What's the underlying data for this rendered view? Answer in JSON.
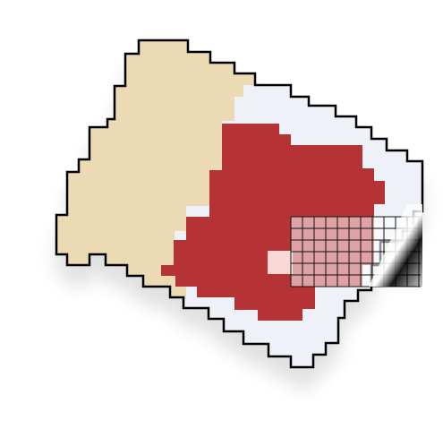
{
  "regions": [
    {
      "name": "sand-region",
      "color": "#ecdab5"
    },
    {
      "name": "ice-region",
      "color": "#eef2f8"
    },
    {
      "name": "red-region",
      "color": "#b53134"
    }
  ],
  "highlight_tile_color": "#f8d8d4",
  "grid_overlay": {
    "line_color": "#111111",
    "fill_color": "#ffffff",
    "dark_corner_color": "#000000"
  },
  "outline_color": "#000000"
}
